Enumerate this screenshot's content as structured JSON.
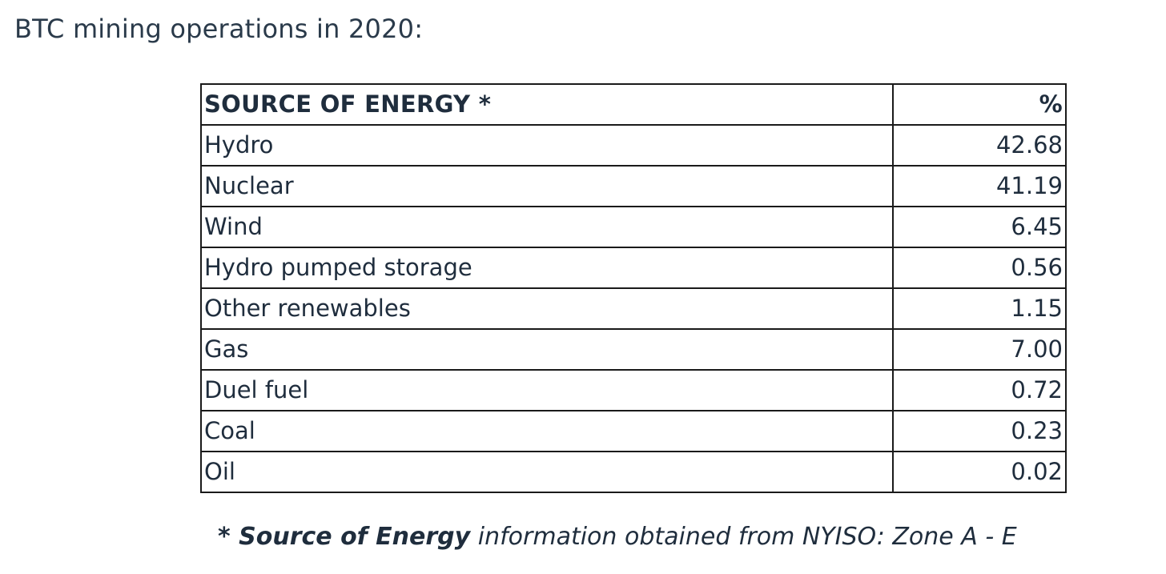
{
  "intro": "BTC mining operations in 2020:",
  "table": {
    "header": {
      "source": "SOURCE OF ENERGY *",
      "percent": "%"
    },
    "rows": [
      {
        "source": "Hydro",
        "percent": "42.68"
      },
      {
        "source": "Nuclear",
        "percent": "41.19"
      },
      {
        "source": "Wind",
        "percent": "6.45"
      },
      {
        "source": "Hydro pumped storage",
        "percent": "0.56"
      },
      {
        "source": "Other renewables",
        "percent": "1.15"
      },
      {
        "source": "Gas",
        "percent": "7.00"
      },
      {
        "source": "Duel fuel",
        "percent": "0.72"
      },
      {
        "source": "Coal",
        "percent": "0.23"
      },
      {
        "source": "Oil",
        "percent": "0.02"
      }
    ]
  },
  "footnote": {
    "bold": "* Source of Energy",
    "rest": " information obtained from NYISO: Zone A - E"
  }
}
